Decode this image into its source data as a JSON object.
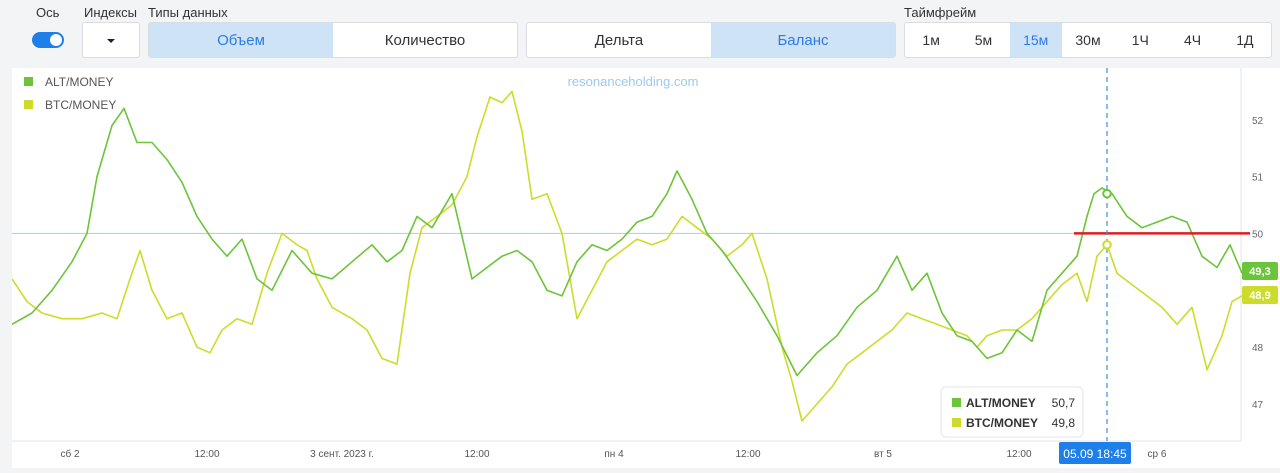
{
  "toolbar": {
    "axis_label": "Ось",
    "indices_label": "Индексы",
    "datatype_label": "Типы данных",
    "datatype_options": [
      "Объем",
      "Количество"
    ],
    "datatype_active": 0,
    "mode_options": [
      "Дельта",
      "Баланс"
    ],
    "mode_active": 1,
    "timeframe_label": "Таймфрейм",
    "timeframes": [
      "1м",
      "5м",
      "15м",
      "30м",
      "1Ч",
      "4Ч",
      "1Д"
    ],
    "timeframe_active": 2,
    "toggle_on": true
  },
  "chart_data": {
    "type": "line",
    "watermark": "resonanceholding.com",
    "x_tick_labels": [
      "сб 2",
      "12:00",
      "3 сент. 2023 г.",
      "12:00",
      "пн 4",
      "12:00",
      "вт 5",
      "12:00",
      "ср 6"
    ],
    "crosshair_label": "05.09 18:45",
    "y_ticks": [
      47,
      48,
      49,
      50,
      51,
      52
    ],
    "ylim": [
      46.4,
      52.7
    ],
    "horizontal_line": 50,
    "series": [
      {
        "name": "ALT/MONEY",
        "color": "#6cc43a",
        "last_value": "49,3",
        "points": [
          [
            0,
            48.4
          ],
          [
            20,
            48.6
          ],
          [
            40,
            49.0
          ],
          [
            60,
            49.5
          ],
          [
            75,
            50.0
          ],
          [
            85,
            51.0
          ],
          [
            100,
            51.9
          ],
          [
            112,
            52.2
          ],
          [
            125,
            51.6
          ],
          [
            140,
            51.6
          ],
          [
            155,
            51.3
          ],
          [
            170,
            50.9
          ],
          [
            185,
            50.3
          ],
          [
            200,
            49.9
          ],
          [
            215,
            49.6
          ],
          [
            230,
            49.9
          ],
          [
            245,
            49.2
          ],
          [
            260,
            49.0
          ],
          [
            280,
            49.7
          ],
          [
            300,
            49.3
          ],
          [
            320,
            49.2
          ],
          [
            340,
            49.5
          ],
          [
            360,
            49.8
          ],
          [
            375,
            49.5
          ],
          [
            390,
            49.7
          ],
          [
            405,
            50.3
          ],
          [
            420,
            50.1
          ],
          [
            440,
            50.7
          ],
          [
            460,
            49.2
          ],
          [
            475,
            49.4
          ],
          [
            490,
            49.6
          ],
          [
            505,
            49.7
          ],
          [
            520,
            49.5
          ],
          [
            535,
            49.0
          ],
          [
            550,
            48.9
          ],
          [
            565,
            49.5
          ],
          [
            580,
            49.8
          ],
          [
            595,
            49.7
          ],
          [
            610,
            49.9
          ],
          [
            625,
            50.2
          ],
          [
            640,
            50.3
          ],
          [
            655,
            50.7
          ],
          [
            665,
            51.1
          ],
          [
            680,
            50.6
          ],
          [
            695,
            50.0
          ],
          [
            710,
            49.7
          ],
          [
            730,
            49.2
          ],
          [
            745,
            48.8
          ],
          [
            765,
            48.2
          ],
          [
            785,
            47.5
          ],
          [
            805,
            47.9
          ],
          [
            825,
            48.2
          ],
          [
            845,
            48.7
          ],
          [
            865,
            49.0
          ],
          [
            885,
            49.6
          ],
          [
            900,
            49.0
          ],
          [
            915,
            49.3
          ],
          [
            930,
            48.6
          ],
          [
            945,
            48.2
          ],
          [
            960,
            48.1
          ],
          [
            975,
            47.8
          ],
          [
            990,
            47.9
          ],
          [
            1005,
            48.3
          ],
          [
            1020,
            48.1
          ],
          [
            1035,
            49.0
          ],
          [
            1050,
            49.3
          ],
          [
            1065,
            49.6
          ],
          [
            1075,
            50.3
          ],
          [
            1082,
            50.7
          ],
          [
            1090,
            50.8
          ],
          [
            1100,
            50.7
          ],
          [
            1115,
            50.3
          ],
          [
            1130,
            50.1
          ],
          [
            1145,
            50.2
          ],
          [
            1160,
            50.3
          ],
          [
            1175,
            50.2
          ],
          [
            1190,
            49.6
          ],
          [
            1205,
            49.4
          ],
          [
            1218,
            49.8
          ],
          [
            1230,
            49.3
          ]
        ]
      },
      {
        "name": "BTC/MONEY",
        "color": "#cddc2b",
        "last_value": "48,9",
        "points": [
          [
            0,
            49.2
          ],
          [
            15,
            48.8
          ],
          [
            30,
            48.6
          ],
          [
            50,
            48.5
          ],
          [
            70,
            48.5
          ],
          [
            90,
            48.6
          ],
          [
            105,
            48.5
          ],
          [
            118,
            49.2
          ],
          [
            128,
            49.7
          ],
          [
            140,
            49.0
          ],
          [
            155,
            48.5
          ],
          [
            170,
            48.6
          ],
          [
            185,
            48.0
          ],
          [
            198,
            47.9
          ],
          [
            210,
            48.3
          ],
          [
            225,
            48.5
          ],
          [
            240,
            48.4
          ],
          [
            255,
            49.3
          ],
          [
            270,
            50.0
          ],
          [
            285,
            49.8
          ],
          [
            295,
            49.7
          ],
          [
            305,
            49.2
          ],
          [
            320,
            48.7
          ],
          [
            340,
            48.5
          ],
          [
            355,
            48.3
          ],
          [
            370,
            47.8
          ],
          [
            385,
            47.7
          ],
          [
            398,
            49.3
          ],
          [
            410,
            50.1
          ],
          [
            425,
            50.3
          ],
          [
            440,
            50.5
          ],
          [
            455,
            51.0
          ],
          [
            465,
            51.7
          ],
          [
            478,
            52.4
          ],
          [
            490,
            52.3
          ],
          [
            500,
            52.5
          ],
          [
            510,
            51.8
          ],
          [
            520,
            50.6
          ],
          [
            535,
            50.7
          ],
          [
            550,
            50.0
          ],
          [
            565,
            48.5
          ],
          [
            580,
            49.0
          ],
          [
            595,
            49.5
          ],
          [
            610,
            49.7
          ],
          [
            625,
            49.9
          ],
          [
            640,
            49.8
          ],
          [
            655,
            49.9
          ],
          [
            670,
            50.3
          ],
          [
            685,
            50.1
          ],
          [
            700,
            49.9
          ],
          [
            715,
            49.6
          ],
          [
            730,
            49.8
          ],
          [
            740,
            50.0
          ],
          [
            755,
            49.2
          ],
          [
            770,
            48.0
          ],
          [
            780,
            47.4
          ],
          [
            790,
            46.7
          ],
          [
            805,
            47.0
          ],
          [
            820,
            47.3
          ],
          [
            835,
            47.7
          ],
          [
            850,
            47.9
          ],
          [
            865,
            48.1
          ],
          [
            880,
            48.3
          ],
          [
            895,
            48.6
          ],
          [
            910,
            48.5
          ],
          [
            925,
            48.4
          ],
          [
            940,
            48.3
          ],
          [
            955,
            48.2
          ],
          [
            965,
            48.0
          ],
          [
            975,
            48.2
          ],
          [
            990,
            48.3
          ],
          [
            1005,
            48.3
          ],
          [
            1020,
            48.5
          ],
          [
            1035,
            48.8
          ],
          [
            1050,
            49.1
          ],
          [
            1065,
            49.3
          ],
          [
            1075,
            48.8
          ],
          [
            1085,
            49.6
          ],
          [
            1095,
            49.8
          ],
          [
            1105,
            49.3
          ],
          [
            1120,
            49.1
          ],
          [
            1135,
            48.9
          ],
          [
            1150,
            48.7
          ],
          [
            1165,
            48.4
          ],
          [
            1180,
            48.7
          ],
          [
            1195,
            47.6
          ],
          [
            1210,
            48.2
          ],
          [
            1220,
            48.8
          ],
          [
            1230,
            48.9
          ]
        ]
      }
    ],
    "tooltip": [
      {
        "name": "ALT/MONEY",
        "value": "50,7"
      },
      {
        "name": "BTC/MONEY",
        "value": "49,8"
      }
    ],
    "markers": [
      {
        "series": "ALT/MONEY",
        "x": 1095,
        "y": 50.7
      },
      {
        "series": "BTC/MONEY",
        "x": 1095,
        "y": 49.8
      }
    ],
    "red_level": {
      "x_start": 1062,
      "x_end": 1238,
      "y": 50.0
    }
  }
}
